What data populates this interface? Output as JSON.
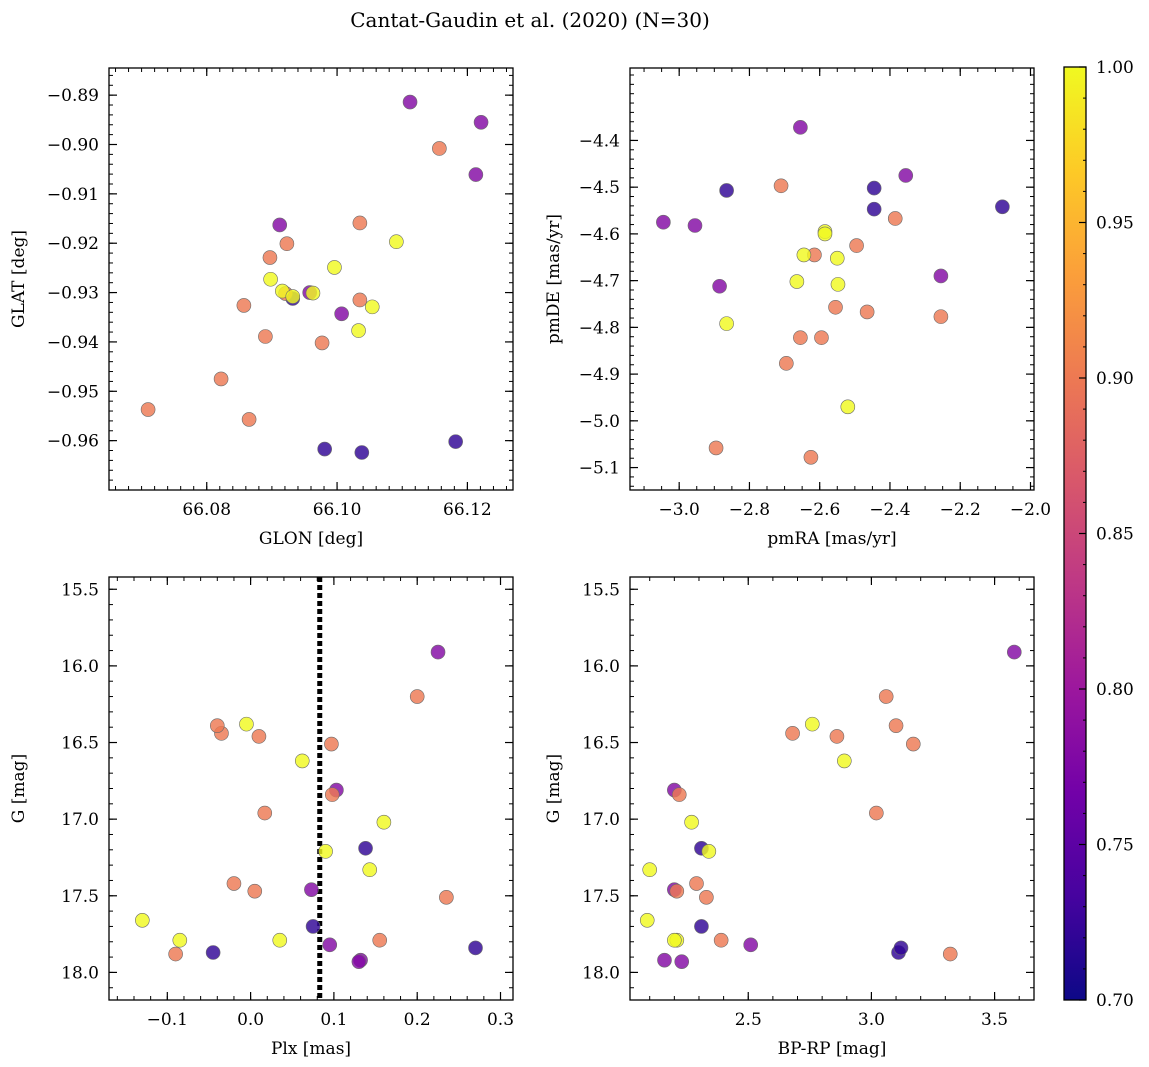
{
  "figure": {
    "title": "Cantat-Gaudin et al. (2020) (N=30)"
  },
  "colorbar": {
    "min": 0.7,
    "max": 1.0,
    "ticks": [
      0.7,
      0.75,
      0.8,
      0.85,
      0.9,
      0.95,
      1.0
    ],
    "tick_labels": [
      "0.70",
      "0.75",
      "0.80",
      "0.85",
      "0.90",
      "0.95",
      "1.00"
    ],
    "colormap": "plasma",
    "colormap_stops": [
      "#0d0887",
      "#46039f",
      "#7201a8",
      "#9c179e",
      "#bd3786",
      "#d8576b",
      "#ed7953",
      "#fb9f3a",
      "#fdca26",
      "#f0f921"
    ]
  },
  "chart_data": [
    {
      "type": "scatter",
      "name": "glon-glat",
      "xlabel": "GLON [deg]",
      "ylabel": "GLAT [deg]",
      "xlim": [
        66.065,
        66.127
      ],
      "ylim": [
        -0.97,
        -0.8845
      ],
      "xticks": [
        66.08,
        66.1,
        66.12
      ],
      "xtick_labels": [
        "66.08",
        "66.10",
        "66.12"
      ],
      "yticks": [
        -0.89,
        -0.9,
        -0.91,
        -0.92,
        -0.93,
        -0.94,
        -0.95,
        -0.96
      ],
      "ytick_labels": [
        "−0.89",
        "−0.90",
        "−0.91",
        "−0.92",
        "−0.93",
        "−0.94",
        "−0.95",
        "−0.96"
      ],
      "x_minor_step": 0.002,
      "y_minor_step": 0.002,
      "x_key": "glon",
      "y_key": "glat"
    },
    {
      "type": "scatter",
      "name": "pmra-pmde",
      "xlabel": "pmRA [mas/yr]",
      "ylabel": "pmDE [mas/yr]",
      "xlim": [
        -3.14,
        -1.99
      ],
      "ylim": [
        -5.148,
        -4.245
      ],
      "xticks": [
        -3.0,
        -2.8,
        -2.6,
        -2.4,
        -2.2,
        -2.0
      ],
      "xtick_labels": [
        "−3.0",
        "−2.8",
        "−2.6",
        "−2.4",
        "−2.2",
        "−2.0"
      ],
      "yticks": [
        -4.4,
        -4.5,
        -4.6,
        -4.7,
        -4.8,
        -4.9,
        -5.0,
        -5.1
      ],
      "ytick_labels": [
        "−4.4",
        "−4.5",
        "−4.6",
        "−4.7",
        "−4.8",
        "−4.9",
        "−5.0",
        "−5.1"
      ],
      "x_minor_step": 0.05,
      "y_minor_step": 0.02,
      "x_key": "pmra",
      "y_key": "pmde"
    },
    {
      "type": "scatter",
      "name": "plx-g",
      "xlabel": "Plx [mas]",
      "ylabel": "G [mag]",
      "xlim": [
        -0.17,
        0.315
      ],
      "ylim": [
        18.18,
        15.42
      ],
      "y_inverted": true,
      "xticks": [
        -0.1,
        0.0,
        0.1,
        0.2,
        0.3
      ],
      "xtick_labels": [
        "−0.1",
        "0.0",
        "0.1",
        "0.2",
        "0.3"
      ],
      "yticks": [
        15.5,
        16.0,
        16.5,
        17.0,
        17.5,
        18.0
      ],
      "ytick_labels": [
        "15.5",
        "16.0",
        "16.5",
        "17.0",
        "17.5",
        "18.0"
      ],
      "x_minor_step": 0.02,
      "y_minor_step": 0.1,
      "vline": {
        "x": 0.083,
        "style": "dotted",
        "color": "#000000"
      },
      "x_key": "plx",
      "y_key": "g"
    },
    {
      "type": "scatter",
      "name": "bprp-g",
      "xlabel": "BP-RP [mag]",
      "ylabel": "G [mag]",
      "xlim": [
        2.02,
        3.66
      ],
      "ylim": [
        18.18,
        15.42
      ],
      "y_inverted": true,
      "xticks": [
        2.5,
        3.0,
        3.5
      ],
      "xtick_labels": [
        "2.5",
        "3.0",
        "3.5"
      ],
      "yticks": [
        15.5,
        16.0,
        16.5,
        17.0,
        17.5,
        18.0
      ],
      "ytick_labels": [
        "15.5",
        "16.0",
        "16.5",
        "17.0",
        "17.5",
        "18.0"
      ],
      "x_minor_step": 0.1,
      "y_minor_step": 0.1,
      "x_key": "bprp",
      "y_key": "g"
    }
  ],
  "stars": [
    {
      "glon": 66.1112,
      "glat": -0.8914,
      "pmra": -2.655,
      "pmde": -4.372,
      "plx": 0.095,
      "g": 17.82,
      "bprp": 2.51,
      "prob": 0.78
    },
    {
      "glon": 66.1221,
      "glat": -0.8955,
      "pmra": -2.355,
      "pmde": -4.475,
      "plx": 0.225,
      "g": 15.91,
      "bprp": 3.58,
      "prob": 0.78
    },
    {
      "glon": 66.1157,
      "glat": -0.9008,
      "pmra": -2.71,
      "pmde": -4.497,
      "plx": 0.2,
      "g": 16.2,
      "bprp": 3.06,
      "prob": 0.9
    },
    {
      "glon": 66.1213,
      "glat": -0.9061,
      "pmra": -2.255,
      "pmde": -4.69,
      "plx": 0.132,
      "g": 17.92,
      "bprp": 2.16,
      "prob": 0.78
    },
    {
      "glon": 66.0912,
      "glat": -0.9163,
      "pmra": -3.045,
      "pmde": -4.575,
      "plx": 0.103,
      "g": 16.81,
      "bprp": 2.2,
      "prob": 0.78
    },
    {
      "glon": 66.1035,
      "glat": -0.9159,
      "pmra": -2.385,
      "pmde": -4.567,
      "plx": 0.235,
      "g": 17.51,
      "bprp": 2.33,
      "prob": 0.9
    },
    {
      "glon": 66.1091,
      "glat": -0.9197,
      "pmra": -2.52,
      "pmde": -4.97,
      "plx": 0.16,
      "g": 17.02,
      "bprp": 2.27,
      "prob": 1.0
    },
    {
      "glon": 66.0923,
      "glat": -0.9201,
      "pmra": -2.495,
      "pmde": -4.625,
      "plx": -0.02,
      "g": 17.42,
      "bprp": 2.29,
      "prob": 0.9
    },
    {
      "glon": 66.0897,
      "glat": -0.9229,
      "pmra": -2.615,
      "pmde": -4.645,
      "plx": 0.005,
      "g": 17.47,
      "bprp": 2.21,
      "prob": 0.9
    },
    {
      "glon": 66.0996,
      "glat": -0.9249,
      "pmra": -2.585,
      "pmde": -4.595,
      "plx": 0.062,
      "g": 16.62,
      "bprp": 2.89,
      "prob": 1.0
    },
    {
      "glon": 66.0898,
      "glat": -0.9273,
      "pmra": -2.585,
      "pmde": -4.6,
      "plx": -0.005,
      "g": 16.38,
      "bprp": 2.76,
      "prob": 1.0
    },
    {
      "glon": 66.0916,
      "glat": -0.9297,
      "pmra": -2.55,
      "pmde": -4.652,
      "plx": 0.143,
      "g": 17.33,
      "bprp": 2.1,
      "prob": 1.0
    },
    {
      "glon": 66.0958,
      "glat": -0.93,
      "pmra": -2.885,
      "pmde": -4.712,
      "plx": 0.073,
      "g": 17.46,
      "bprp": 2.2,
      "prob": 0.78
    },
    {
      "glon": 66.0963,
      "glat": -0.9301,
      "pmra": -2.645,
      "pmde": -4.645,
      "plx": 0.035,
      "g": 17.79,
      "bprp": 2.21,
      "prob": 1.0
    },
    {
      "glon": 66.0921,
      "glat": -0.9302,
      "pmra": -2.595,
      "pmde": -4.822,
      "plx": -0.09,
      "g": 17.88,
      "bprp": 3.32,
      "prob": 0.9
    },
    {
      "glon": 66.0932,
      "glat": -0.9312,
      "pmra": -2.445,
      "pmde": -4.502,
      "plx": 0.075,
      "g": 17.7,
      "bprp": 2.31,
      "prob": 0.72
    },
    {
      "glon": 66.0932,
      "glat": -0.9308,
      "pmra": -2.548,
      "pmde": -4.708,
      "plx": 0.09,
      "g": 17.21,
      "bprp": 2.34,
      "prob": 1.0
    },
    {
      "glon": 66.1035,
      "glat": -0.9315,
      "pmra": -2.555,
      "pmde": -4.757,
      "plx": -0.035,
      "g": 16.44,
      "bprp": 2.68,
      "prob": 0.9
    },
    {
      "glon": 66.0857,
      "glat": -0.9326,
      "pmra": -2.655,
      "pmde": -4.822,
      "plx": -0.04,
      "g": 16.39,
      "bprp": 3.1,
      "prob": 0.9
    },
    {
      "glon": 66.1054,
      "glat": -0.9329,
      "pmra": -2.865,
      "pmde": -4.792,
      "plx": -0.13,
      "g": 17.66,
      "bprp": 2.09,
      "prob": 1.0
    },
    {
      "glon": 66.1007,
      "glat": -0.9343,
      "pmra": -2.955,
      "pmde": -4.582,
      "plx": 0.13,
      "g": 17.93,
      "bprp": 2.23,
      "prob": 0.78
    },
    {
      "glon": 66.1033,
      "glat": -0.9377,
      "pmra": -2.665,
      "pmde": -4.702,
      "plx": -0.085,
      "g": 17.79,
      "bprp": 2.2,
      "prob": 1.0
    },
    {
      "glon": 66.0977,
      "glat": -0.9402,
      "pmra": -2.465,
      "pmde": -4.767,
      "plx": 0.01,
      "g": 16.46,
      "bprp": 2.86,
      "prob": 0.9
    },
    {
      "glon": 66.089,
      "glat": -0.9389,
      "pmra": -2.695,
      "pmde": -4.877,
      "plx": 0.155,
      "g": 17.79,
      "bprp": 2.39,
      "prob": 0.9
    },
    {
      "glon": 66.0822,
      "glat": -0.9475,
      "pmra": -2.255,
      "pmde": -4.777,
      "plx": 0.097,
      "g": 16.51,
      "bprp": 3.17,
      "prob": 0.9
    },
    {
      "glon": 66.071,
      "glat": -0.9537,
      "pmra": -2.895,
      "pmde": -5.058,
      "plx": 0.017,
      "g": 16.96,
      "bprp": 3.02,
      "prob": 0.9
    },
    {
      "glon": 66.0865,
      "glat": -0.9557,
      "pmra": -2.625,
      "pmde": -5.078,
      "plx": 0.098,
      "g": 16.84,
      "bprp": 2.22,
      "prob": 0.9
    },
    {
      "glon": 66.0981,
      "glat": -0.9617,
      "pmra": -2.865,
      "pmde": -4.507,
      "plx": 0.138,
      "g": 17.19,
      "bprp": 2.31,
      "prob": 0.72
    },
    {
      "glon": 66.1038,
      "glat": -0.9624,
      "pmra": -2.445,
      "pmde": -4.547,
      "plx": -0.045,
      "g": 17.87,
      "bprp": 3.11,
      "prob": 0.72
    },
    {
      "glon": 66.1182,
      "glat": -0.9602,
      "pmra": -2.08,
      "pmde": -4.542,
      "plx": 0.27,
      "g": 17.84,
      "bprp": 3.12,
      "prob": 0.72
    }
  ]
}
